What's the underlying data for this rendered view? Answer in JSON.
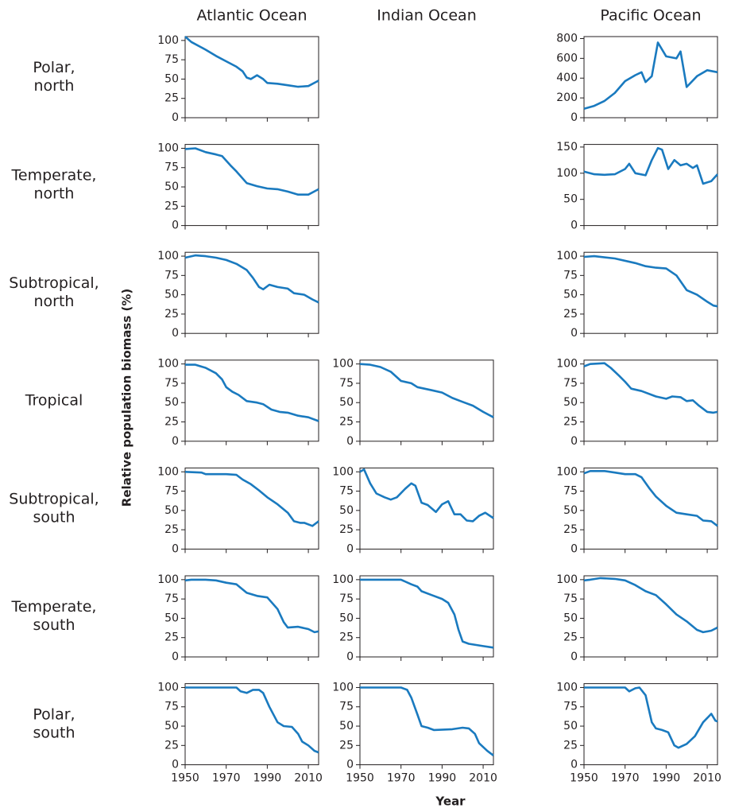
{
  "columns": [
    "Atlantic Ocean",
    "Indian Ocean",
    "Pacific Ocean"
  ],
  "rows": [
    [
      "Polar,",
      "north"
    ],
    [
      "Temperate,",
      "north"
    ],
    [
      "Subtropical,",
      "north"
    ],
    [
      "Tropical"
    ],
    [
      "Subtropical,",
      "south"
    ],
    [
      "Temperate,",
      "south"
    ],
    [
      "Polar,",
      "south"
    ]
  ],
  "y_label": "Relative population biomass (%)",
  "x_label": "Year",
  "chart_data": [
    {
      "type": "line",
      "color": "#1a7abf",
      "xlim": [
        1950,
        2015
      ],
      "xticks": [
        1950,
        1970,
        1990,
        2010
      ],
      "ylim": [
        0,
        105
      ],
      "yticks": [
        0,
        25,
        50,
        75,
        100
      ],
      "x": [
        1950,
        1953,
        1960,
        1965,
        1970,
        1975,
        1978,
        1980,
        1982,
        1985,
        1988,
        1990,
        1995,
        2000,
        2005,
        2010,
        2015
      ],
      "values": [
        105,
        98,
        88,
        80,
        73,
        66,
        60,
        52,
        50,
        55,
        50,
        45,
        44,
        42,
        40,
        41,
        48
      ]
    },
    {
      "type": "line",
      "color": "#1a7abf",
      "xlim": [
        1950,
        2015
      ],
      "xticks": [
        1950,
        1970,
        1990,
        2010
      ],
      "ylim": [
        0,
        820
      ],
      "yticks": [
        0,
        200,
        400,
        600,
        800
      ],
      "x": [
        1950,
        1955,
        1960,
        1965,
        1970,
        1975,
        1978,
        1980,
        1983,
        1986,
        1990,
        1995,
        1997,
        2000,
        2005,
        2010,
        2015
      ],
      "values": [
        90,
        120,
        170,
        250,
        370,
        430,
        460,
        360,
        420,
        760,
        620,
        600,
        670,
        310,
        420,
        480,
        460
      ]
    },
    {
      "type": "line",
      "color": "#1a7abf",
      "xlim": [
        1950,
        2015
      ],
      "xticks": [
        1950,
        1970,
        1990,
        2010
      ],
      "ylim": [
        0,
        105
      ],
      "yticks": [
        0,
        25,
        50,
        75,
        100
      ],
      "x": [
        1950,
        1955,
        1960,
        1965,
        1968,
        1972,
        1975,
        1980,
        1985,
        1990,
        1995,
        2000,
        2005,
        2010,
        2015
      ],
      "values": [
        99,
        100,
        95,
        92,
        90,
        78,
        70,
        55,
        51,
        48,
        47,
        44,
        40,
        40,
        47
      ]
    },
    {
      "type": "line",
      "color": "#1a7abf",
      "xlim": [
        1950,
        2015
      ],
      "xticks": [
        1950,
        1970,
        1990,
        2010
      ],
      "ylim": [
        0,
        155
      ],
      "yticks": [
        0,
        50,
        100,
        150
      ],
      "x": [
        1950,
        1955,
        1960,
        1965,
        1970,
        1972,
        1975,
        1980,
        1983,
        1986,
        1988,
        1991,
        1994,
        1997,
        2000,
        2003,
        2005,
        2008,
        2012,
        2015
      ],
      "values": [
        103,
        98,
        97,
        98,
        108,
        118,
        100,
        96,
        125,
        148,
        145,
        108,
        125,
        115,
        118,
        110,
        115,
        80,
        85,
        98
      ]
    },
    {
      "type": "line",
      "color": "#1a7abf",
      "xlim": [
        1950,
        2015
      ],
      "xticks": [
        1950,
        1970,
        1990,
        2010
      ],
      "ylim": [
        0,
        105
      ],
      "yticks": [
        0,
        25,
        50,
        75,
        100
      ],
      "x": [
        1950,
        1955,
        1960,
        1965,
        1970,
        1975,
        1980,
        1983,
        1986,
        1988,
        1991,
        1995,
        2000,
        2003,
        2008,
        2012,
        2015
      ],
      "values": [
        98,
        101,
        100,
        98,
        95,
        90,
        82,
        72,
        60,
        57,
        63,
        60,
        58,
        52,
        50,
        44,
        40
      ]
    },
    {
      "type": "line",
      "color": "#1a7abf",
      "xlim": [
        1950,
        2015
      ],
      "xticks": [
        1950,
        1970,
        1990,
        2010
      ],
      "ylim": [
        0,
        105
      ],
      "yticks": [
        0,
        25,
        50,
        75,
        100
      ],
      "x": [
        1950,
        1955,
        1965,
        1975,
        1980,
        1985,
        1990,
        1995,
        2000,
        2005,
        2010,
        2013,
        2015
      ],
      "values": [
        99,
        100,
        97,
        91,
        87,
        85,
        84,
        75,
        56,
        50,
        41,
        36,
        35
      ]
    },
    {
      "type": "line",
      "color": "#1a7abf",
      "xlim": [
        1950,
        2015
      ],
      "xticks": [
        1950,
        1970,
        1990,
        2010
      ],
      "ylim": [
        0,
        105
      ],
      "yticks": [
        0,
        25,
        50,
        75,
        100
      ],
      "x": [
        1950,
        1955,
        1960,
        1965,
        1968,
        1970,
        1973,
        1976,
        1980,
        1985,
        1988,
        1992,
        1996,
        2000,
        2005,
        2010,
        2015
      ],
      "values": [
        99,
        99,
        95,
        88,
        80,
        70,
        64,
        60,
        52,
        50,
        48,
        41,
        38,
        37,
        33,
        31,
        26
      ]
    },
    {
      "type": "line",
      "color": "#1a7abf",
      "xlim": [
        1950,
        2015
      ],
      "xticks": [
        1950,
        1970,
        1990,
        2010
      ],
      "ylim": [
        0,
        105
      ],
      "yticks": [
        0,
        25,
        50,
        75,
        100
      ],
      "x": [
        1950,
        1955,
        1960,
        1965,
        1970,
        1975,
        1978,
        1985,
        1990,
        1995,
        2000,
        2005,
        2010,
        2015
      ],
      "values": [
        100,
        99,
        96,
        90,
        78,
        75,
        70,
        66,
        63,
        56,
        51,
        46,
        38,
        31
      ]
    },
    {
      "type": "line",
      "color": "#1a7abf",
      "xlim": [
        1950,
        2015
      ],
      "xticks": [
        1950,
        1970,
        1990,
        2010
      ],
      "ylim": [
        0,
        105
      ],
      "yticks": [
        0,
        25,
        50,
        75,
        100
      ],
      "x": [
        1950,
        1953,
        1960,
        1963,
        1967,
        1970,
        1973,
        1978,
        1985,
        1990,
        1993,
        1997,
        2000,
        2003,
        2006,
        2010,
        2013,
        2015
      ],
      "values": [
        97,
        100,
        101,
        95,
        85,
        77,
        68,
        65,
        58,
        55,
        58,
        57,
        52,
        53,
        46,
        38,
        37,
        38
      ]
    },
    {
      "type": "line",
      "color": "#1a7abf",
      "xlim": [
        1950,
        2015
      ],
      "xticks": [
        1950,
        1970,
        1990,
        2010
      ],
      "ylim": [
        0,
        105
      ],
      "yticks": [
        0,
        25,
        50,
        75,
        100
      ],
      "x": [
        1950,
        1958,
        1960,
        1970,
        1975,
        1978,
        1982,
        1986,
        1990,
        1995,
        2000,
        2003,
        2006,
        2008,
        2012,
        2015
      ],
      "values": [
        100,
        99,
        97,
        97,
        96,
        90,
        84,
        76,
        67,
        58,
        47,
        36,
        34,
        34,
        30,
        36
      ]
    },
    {
      "type": "line",
      "color": "#1a7abf",
      "xlim": [
        1950,
        2015
      ],
      "xticks": [
        1950,
        1970,
        1990,
        2010
      ],
      "ylim": [
        0,
        105
      ],
      "yticks": [
        0,
        25,
        50,
        75,
        100
      ],
      "x": [
        1950,
        1952,
        1955,
        1958,
        1962,
        1965,
        1968,
        1972,
        1975,
        1977,
        1980,
        1983,
        1987,
        1990,
        1993,
        1996,
        1999,
        2002,
        2005,
        2008,
        2011,
        2015
      ],
      "values": [
        100,
        103,
        85,
        72,
        67,
        64,
        67,
        78,
        85,
        82,
        60,
        57,
        48,
        58,
        62,
        45,
        45,
        37,
        36,
        43,
        47,
        40
      ]
    },
    {
      "type": "line",
      "color": "#1a7abf",
      "xlim": [
        1950,
        2015
      ],
      "xticks": [
        1950,
        1970,
        1990,
        2010
      ],
      "ylim": [
        0,
        105
      ],
      "yticks": [
        0,
        25,
        50,
        75,
        100
      ],
      "x": [
        1950,
        1953,
        1960,
        1965,
        1970,
        1975,
        1978,
        1982,
        1985,
        1990,
        1995,
        2000,
        2005,
        2008,
        2012,
        2015
      ],
      "values": [
        98,
        101,
        101,
        99,
        97,
        97,
        93,
        78,
        68,
        56,
        47,
        45,
        43,
        37,
        36,
        30
      ]
    },
    {
      "type": "line",
      "color": "#1a7abf",
      "xlim": [
        1950,
        2015
      ],
      "xticks": [
        1950,
        1970,
        1990,
        2010
      ],
      "ylim": [
        0,
        105
      ],
      "yticks": [
        0,
        25,
        50,
        75,
        100
      ],
      "x": [
        1950,
        1953,
        1960,
        1965,
        1970,
        1975,
        1980,
        1985,
        1990,
        1995,
        1998,
        2000,
        2005,
        2010,
        2013,
        2015
      ],
      "values": [
        99,
        100,
        100,
        99,
        96,
        94,
        83,
        79,
        77,
        62,
        45,
        38,
        39,
        36,
        32,
        33
      ]
    },
    {
      "type": "line",
      "color": "#1a7abf",
      "xlim": [
        1950,
        2015
      ],
      "xticks": [
        1950,
        1970,
        1990,
        2010
      ],
      "ylim": [
        0,
        105
      ],
      "yticks": [
        0,
        25,
        50,
        75,
        100
      ],
      "x": [
        1950,
        1970,
        1975,
        1978,
        1980,
        1985,
        1990,
        1993,
        1996,
        1998,
        2000,
        2003,
        2010,
        2015
      ],
      "values": [
        100,
        100,
        94,
        91,
        85,
        80,
        75,
        70,
        55,
        35,
        20,
        17,
        14,
        12
      ]
    },
    {
      "type": "line",
      "color": "#1a7abf",
      "xlim": [
        1950,
        2015
      ],
      "xticks": [
        1950,
        1970,
        1990,
        2010
      ],
      "ylim": [
        0,
        105
      ],
      "yticks": [
        0,
        25,
        50,
        75,
        100
      ],
      "x": [
        1950,
        1953,
        1958,
        1965,
        1970,
        1975,
        1980,
        1985,
        1990,
        1995,
        2000,
        2005,
        2008,
        2012,
        2015
      ],
      "values": [
        99,
        100,
        102,
        101,
        99,
        93,
        85,
        80,
        68,
        55,
        46,
        35,
        32,
        34,
        38
      ]
    },
    {
      "type": "line",
      "color": "#1a7abf",
      "xlim": [
        1950,
        2015
      ],
      "xticks": [
        1950,
        1970,
        1990,
        2010
      ],
      "ylim": [
        0,
        105
      ],
      "yticks": [
        0,
        25,
        50,
        75,
        100
      ],
      "x": [
        1950,
        1975,
        1977,
        1980,
        1983,
        1986,
        1988,
        1991,
        1995,
        1998,
        2002,
        2005,
        2007,
        2010,
        2013,
        2015
      ],
      "values": [
        100,
        100,
        95,
        93,
        97,
        97,
        93,
        75,
        55,
        50,
        49,
        40,
        30,
        25,
        18,
        16
      ]
    },
    {
      "type": "line",
      "color": "#1a7abf",
      "xlim": [
        1950,
        2015
      ],
      "xticks": [
        1950,
        1970,
        1990,
        2010
      ],
      "ylim": [
        0,
        105
      ],
      "yticks": [
        0,
        25,
        50,
        75,
        100
      ],
      "x": [
        1950,
        1970,
        1973,
        1975,
        1978,
        1980,
        1983,
        1986,
        1995,
        2000,
        2003,
        2006,
        2008,
        2012,
        2015
      ],
      "values": [
        100,
        100,
        97,
        87,
        65,
        50,
        48,
        45,
        46,
        48,
        47,
        40,
        28,
        18,
        12
      ]
    },
    {
      "type": "line",
      "color": "#1a7abf",
      "xlim": [
        1950,
        2015
      ],
      "xticks": [
        1950,
        1970,
        1990,
        2010
      ],
      "ylim": [
        0,
        105
      ],
      "yticks": [
        0,
        25,
        50,
        75,
        100
      ],
      "x": [
        1950,
        1970,
        1972,
        1975,
        1977,
        1980,
        1983,
        1985,
        1988,
        1991,
        1994,
        1996,
        2000,
        2004,
        2008,
        2012,
        2014,
        2015
      ],
      "values": [
        100,
        100,
        95,
        99,
        100,
        90,
        55,
        47,
        45,
        42,
        25,
        22,
        27,
        37,
        55,
        66,
        57,
        56
      ]
    }
  ]
}
